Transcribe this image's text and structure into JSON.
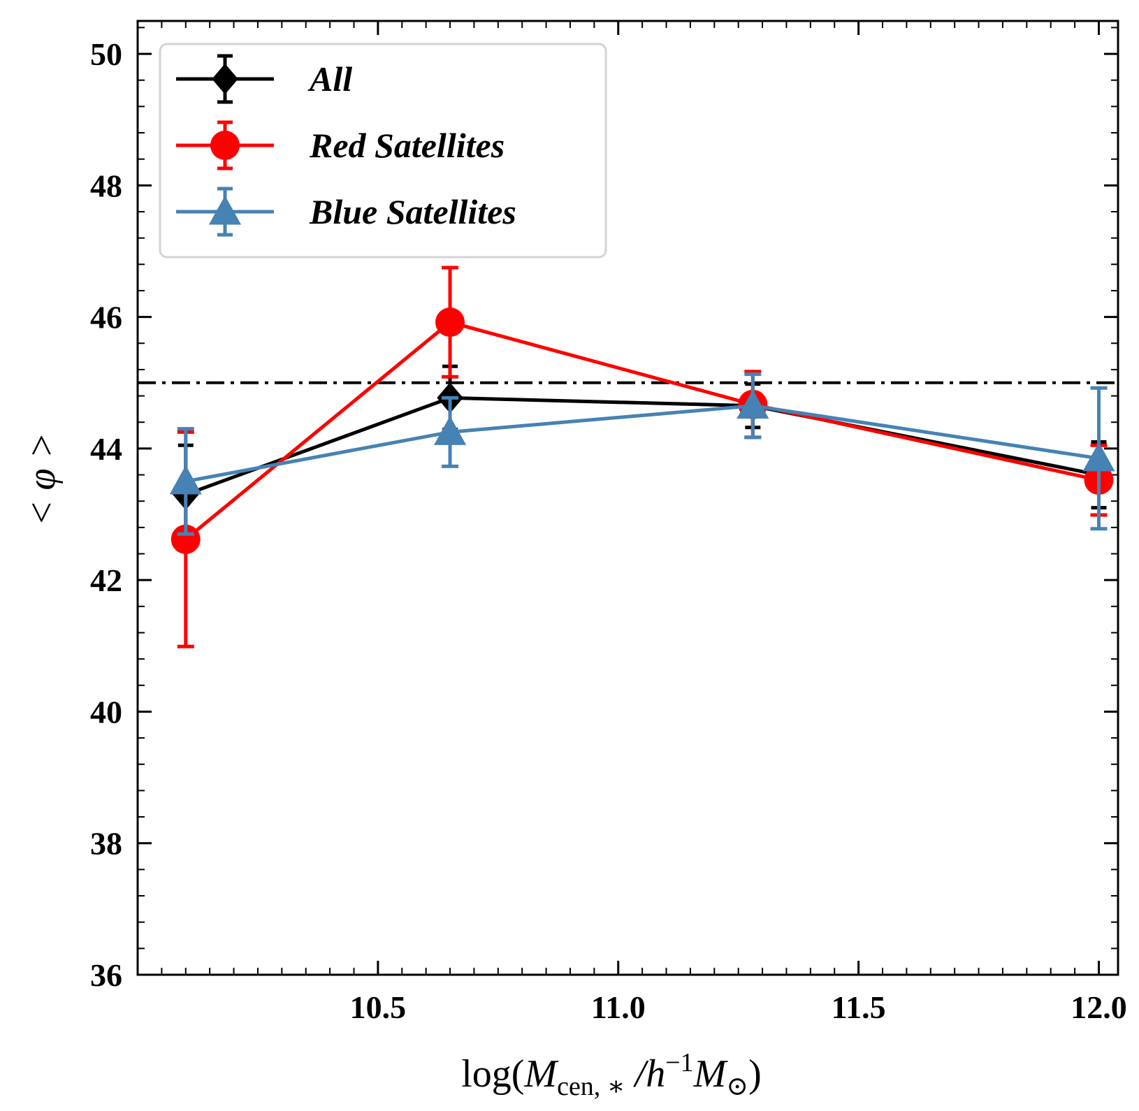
{
  "chart_data": {
    "type": "line",
    "xlabel": {
      "prefix": "log(",
      "var": "M",
      "sub": "cen, ∗",
      "mid": " /h",
      "sup": "−1",
      "var2": "M",
      "sub2": "⊙",
      "suffix": ")"
    },
    "ylabel": "< φ >",
    "xlim": [
      10.0,
      12.04
    ],
    "ylim": [
      36,
      50.5
    ],
    "xticks": [
      10.5,
      11.0,
      11.5,
      12.0
    ],
    "xtick_labels": [
      "10.5",
      "11.0",
      "11.5",
      "12.0"
    ],
    "yticks": [
      36,
      38,
      40,
      42,
      44,
      46,
      48,
      50
    ],
    "ytick_labels": [
      "36",
      "38",
      "40",
      "42",
      "44",
      "46",
      "48",
      "50"
    ],
    "reference_line": {
      "y": 45,
      "style": "dash-dot",
      "color": "#000000"
    },
    "legend_position": "top-left",
    "series": [
      {
        "name": "All",
        "color": "#000000",
        "marker": "diamond",
        "x": [
          10.1,
          10.65,
          11.28,
          12.0
        ],
        "y": [
          43.3,
          44.77,
          44.65,
          43.6
        ],
        "yerr": [
          0.75,
          0.48,
          0.33,
          0.5
        ]
      },
      {
        "name": "Red Satellites",
        "color": "#ff0000",
        "marker": "circle",
        "x": [
          10.1,
          10.65,
          11.28,
          12.0
        ],
        "y": [
          42.62,
          45.92,
          44.67,
          43.52
        ],
        "yerr": [
          1.63,
          0.83,
          0.5,
          0.53
        ]
      },
      {
        "name": "Blue Satellites",
        "color": "#4682b4",
        "marker": "triangle",
        "x": [
          10.1,
          10.65,
          11.28,
          12.0
        ],
        "y": [
          43.5,
          44.25,
          44.65,
          43.85
        ],
        "yerr": [
          0.8,
          0.52,
          0.48,
          1.07
        ]
      }
    ]
  }
}
